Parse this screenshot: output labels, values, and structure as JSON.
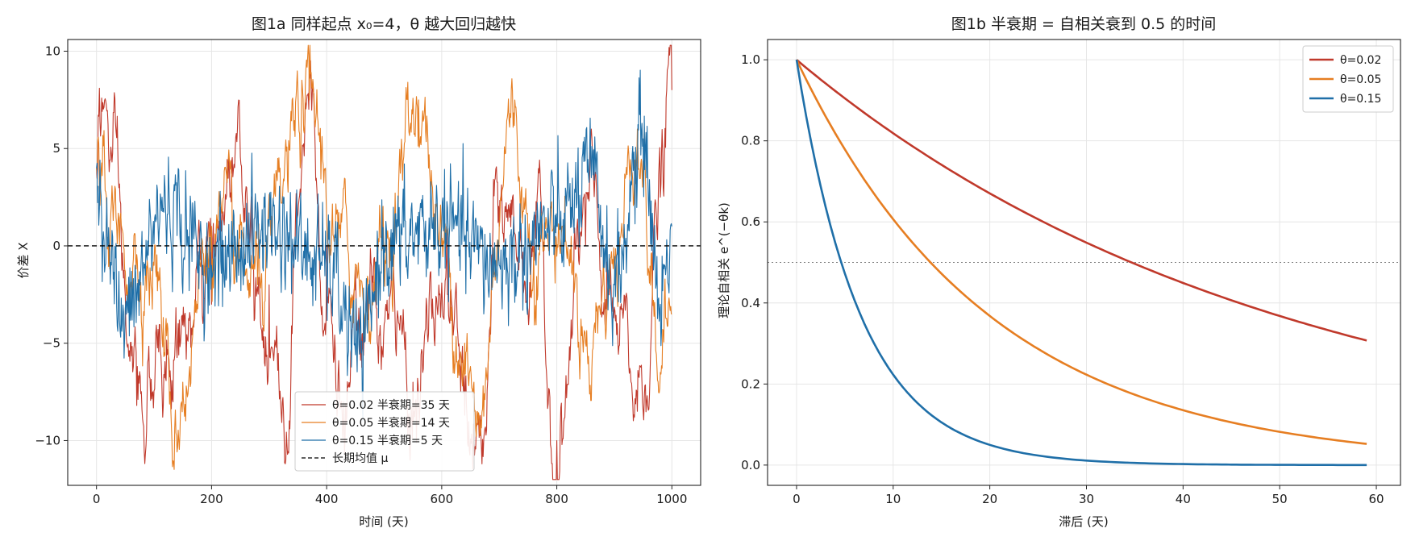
{
  "chart_data": [
    {
      "type": "line",
      "title": "图1a  同样起点 x₀=4，θ 越大回归越快",
      "xlabel": "时间 (天)",
      "ylabel": "价差 X",
      "xlim": [
        -50,
        1050
      ],
      "ylim": [
        -12.3,
        10.6
      ],
      "xticks": [
        0,
        200,
        400,
        600,
        800,
        1000
      ],
      "xtick_labels": [
        "0",
        "200",
        "400",
        "600",
        "800",
        "1000"
      ],
      "yticks": [
        -10,
        -5,
        0,
        5,
        10
      ],
      "ytick_labels": [
        "−10",
        "−5",
        "0",
        "5",
        "10"
      ],
      "grid": true,
      "legend_position": "lower-center",
      "x_range": [
        0,
        1000
      ],
      "series": [
        {
          "name": "θ=0.02  半衰期=35 天",
          "color": "#c0392b",
          "theta": 0.02,
          "x0": 4,
          "key_values": [
            [
              0,
              4
            ],
            [
              5,
              8.1
            ],
            [
              70,
              -8.2
            ],
            [
              200,
              -3
            ],
            [
              245,
              6.0
            ],
            [
              300,
              -2
            ],
            [
              325,
              -8.5
            ],
            [
              370,
              9.5
            ],
            [
              400,
              0
            ],
            [
              430,
              -8
            ],
            [
              500,
              -4
            ],
            [
              550,
              -7
            ],
            [
              610,
              -2.5
            ],
            [
              640,
              -8.7
            ],
            [
              670,
              -11.2
            ],
            [
              700,
              1
            ],
            [
              760,
              0
            ],
            [
              800,
              -10.0
            ],
            [
              850,
              0
            ],
            [
              940,
              -8.5
            ],
            [
              980,
              2.5
            ],
            [
              1000,
              8.0
            ]
          ]
        },
        {
          "name": "θ=0.05  半衰期=14 天",
          "color": "#e67e22",
          "theta": 0.05,
          "x0": 4,
          "key_values": [
            [
              0,
              4
            ],
            [
              40,
              0
            ],
            [
              100,
              -1
            ],
            [
              138,
              -9.6
            ],
            [
              150,
              -7
            ],
            [
              200,
              1
            ],
            [
              280,
              -2
            ],
            [
              370,
              7.5
            ],
            [
              420,
              0
            ],
            [
              470,
              -2
            ],
            [
              500,
              0
            ],
            [
              560,
              7.5
            ],
            [
              600,
              0
            ],
            [
              640,
              -5
            ],
            [
              660,
              -9.8
            ],
            [
              720,
              6.6
            ],
            [
              760,
              0
            ],
            [
              810,
              1
            ],
            [
              850,
              -5
            ],
            [
              900,
              -1
            ],
            [
              940,
              6.0
            ],
            [
              980,
              -6.5
            ],
            [
              1000,
              -3.5
            ]
          ]
        },
        {
          "name": "θ=0.15  半衰期=5 天",
          "color": "#1f6fa8",
          "theta": 0.15,
          "x0": 4,
          "key_values": [
            [
              0,
              4
            ],
            [
              20,
              0
            ],
            [
              45,
              -4
            ],
            [
              120,
              2
            ],
            [
              200,
              -1
            ],
            [
              300,
              1
            ],
            [
              400,
              -1
            ],
            [
              460,
              -5.5
            ],
            [
              500,
              0
            ],
            [
              600,
              1
            ],
            [
              700,
              -1
            ],
            [
              800,
              1
            ],
            [
              860,
              3.5
            ],
            [
              900,
              -2
            ],
            [
              950,
              5.5
            ],
            [
              980,
              -3
            ],
            [
              1000,
              1
            ]
          ]
        },
        {
          "name": "长期均值 μ",
          "color": "#000000",
          "dash": true,
          "x": [
            0,
            1000
          ],
          "y": [
            0,
            0
          ]
        }
      ]
    },
    {
      "type": "line",
      "title": "图1b  半衰期 = 自相关衰到 0.5 的时间",
      "xlabel": "滞后 (天)",
      "ylabel": "理论自相关 e^(−θk)",
      "xlim": [
        -3,
        62.5
      ],
      "ylim": [
        -0.05,
        1.05
      ],
      "xticks": [
        0,
        10,
        20,
        30,
        40,
        50,
        60
      ],
      "xtick_labels": [
        "0",
        "10",
        "20",
        "30",
        "40",
        "50",
        "60"
      ],
      "yticks": [
        0.0,
        0.2,
        0.4,
        0.6,
        0.8,
        1.0
      ],
      "ytick_labels": [
        "0.0",
        "0.2",
        "0.4",
        "0.6",
        "0.8",
        "1.0"
      ],
      "grid": true,
      "legend_position": "top-right",
      "reference_line": {
        "y": 0.5,
        "style": "dotted",
        "color": "#808080"
      },
      "k_range": [
        0,
        59
      ],
      "series": [
        {
          "name": "θ=0.02",
          "color": "#c0392b",
          "theta": 0.02
        },
        {
          "name": "θ=0.05",
          "color": "#e67e22",
          "theta": 0.05
        },
        {
          "name": "θ=0.15",
          "color": "#1f6fa8",
          "theta": 0.15
        }
      ]
    }
  ]
}
